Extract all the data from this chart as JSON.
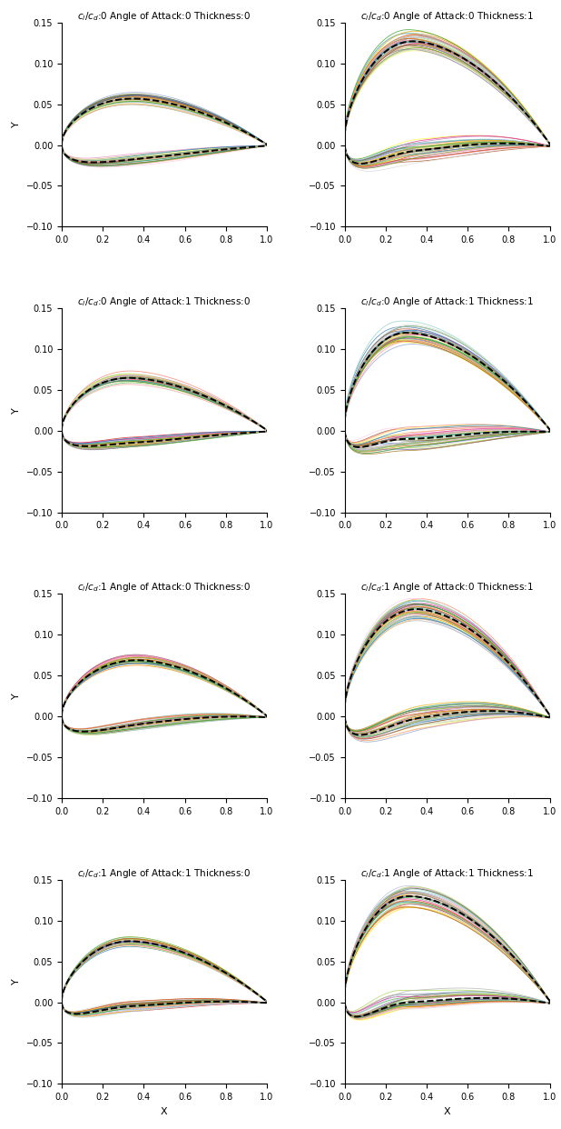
{
  "titles": [
    [
      "$c_l/c_d$:0 Angle of Attack:0 Thickness:0",
      "$c_l/c_d$:0 Angle of Attack:0 Thickness:1"
    ],
    [
      "$c_l/c_d$:0 Angle of Attack:1 Thickness:0",
      "$c_l/c_d$:0 Angle of Attack:1 Thickness:1"
    ],
    [
      "$c_l/c_d$:1 Angle of Attack:0 Thickness:0",
      "$c_l/c_d$:1 Angle of Attack:0 Thickness:1"
    ],
    [
      "$c_l/c_d$:1 Angle of Attack:1 Thickness:0",
      "$c_l/c_d$:1 Angle of Attack:1 Thickness:1"
    ]
  ],
  "ylim": [
    -0.1,
    0.15
  ],
  "xlim": [
    0.0,
    1.0
  ],
  "yticks": [
    -0.1,
    -0.05,
    0.0,
    0.05,
    0.1,
    0.15
  ],
  "xticks": [
    0.0,
    0.2,
    0.4,
    0.6,
    0.8,
    1.0
  ],
  "n_samples": 40,
  "xlabel": "X",
  "ylabel": "Y",
  "conditions": [
    {
      "cl_cd": 0,
      "aoa": 0,
      "thick": 0
    },
    {
      "cl_cd": 0,
      "aoa": 0,
      "thick": 1
    },
    {
      "cl_cd": 0,
      "aoa": 1,
      "thick": 0
    },
    {
      "cl_cd": 0,
      "aoa": 1,
      "thick": 1
    },
    {
      "cl_cd": 1,
      "aoa": 0,
      "thick": 0
    },
    {
      "cl_cd": 1,
      "aoa": 0,
      "thick": 1
    },
    {
      "cl_cd": 1,
      "aoa": 1,
      "thick": 0
    },
    {
      "cl_cd": 1,
      "aoa": 1,
      "thick": 1
    }
  ]
}
